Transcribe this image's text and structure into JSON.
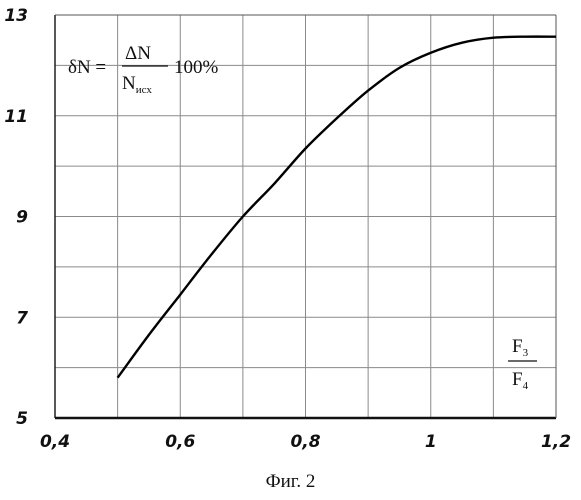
{
  "chart_data": {
    "type": "line",
    "title": "",
    "xlabel": "",
    "ylabel": "",
    "xlim": [
      0.4,
      1.2
    ],
    "ylim": [
      5,
      13
    ],
    "x_ticks": [
      0.4,
      0.6,
      0.8,
      1.0,
      1.2
    ],
    "x_tick_labels": [
      "0,4",
      "0,6",
      "0,8",
      "1",
      "1,2"
    ],
    "y_ticks": [
      5,
      7,
      9,
      11,
      13
    ],
    "y_tick_labels": [
      "5",
      "7",
      "9",
      "11",
      "13"
    ],
    "x_grid_step": 0.1,
    "y_grid_step": 1,
    "grid": true,
    "series": [
      {
        "color": "#000000",
        "x": [
          0.5,
          0.55,
          0.6,
          0.65,
          0.7,
          0.75,
          0.8,
          0.85,
          0.9,
          0.95,
          1.0,
          1.05,
          1.1,
          1.15,
          1.2
        ],
        "values": [
          5.8,
          6.65,
          7.45,
          8.25,
          9.0,
          9.65,
          10.35,
          10.95,
          11.5,
          11.95,
          12.25,
          12.45,
          12.55,
          12.57,
          12.57
        ]
      }
    ],
    "formula": {
      "lhs": "δN =",
      "numerator": "ΔN",
      "denominator_main": "N",
      "denominator_sub": "исх",
      "suffix": "100%"
    },
    "ratio_label": {
      "numerator_main": "F",
      "numerator_sub": "3",
      "denominator_main": "F",
      "denominator_sub": "4"
    }
  },
  "caption": "Фиг. 2"
}
